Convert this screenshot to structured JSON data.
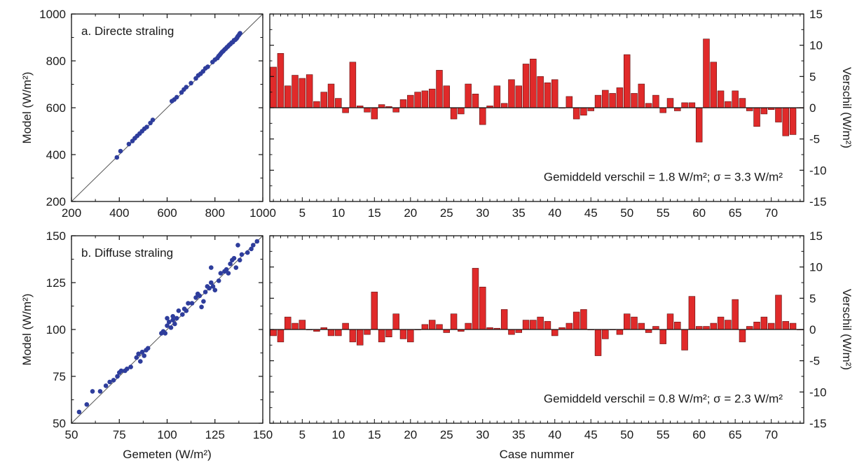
{
  "chart_data": [
    {
      "type": "scatter",
      "title": "a. Directe straling",
      "xlabel": "",
      "ylabel": "Model (W/m²)",
      "xlim": [
        200,
        1000
      ],
      "ylim": [
        200,
        1000
      ],
      "xticks": [
        "200",
        "400",
        "600",
        "800",
        "1000"
      ],
      "yticks": [
        "200",
        "400",
        "600",
        "800",
        "1000"
      ],
      "reference_line": "y = x",
      "grid": false,
      "color": "#2e3d9c",
      "points": [
        [
          390,
          388
        ],
        [
          405,
          415
        ],
        [
          440,
          445
        ],
        [
          455,
          458
        ],
        [
          465,
          470
        ],
        [
          475,
          480
        ],
        [
          485,
          490
        ],
        [
          495,
          500
        ],
        [
          505,
          510
        ],
        [
          515,
          518
        ],
        [
          530,
          535
        ],
        [
          540,
          548
        ],
        [
          620,
          628
        ],
        [
          630,
          635
        ],
        [
          640,
          645
        ],
        [
          660,
          665
        ],
        [
          670,
          678
        ],
        [
          680,
          688
        ],
        [
          700,
          705
        ],
        [
          720,
          725
        ],
        [
          730,
          738
        ],
        [
          740,
          745
        ],
        [
          750,
          755
        ],
        [
          760,
          768
        ],
        [
          770,
          775
        ],
        [
          790,
          795
        ],
        [
          800,
          805
        ],
        [
          810,
          812
        ],
        [
          815,
          820
        ],
        [
          820,
          825
        ],
        [
          825,
          832
        ],
        [
          830,
          838
        ],
        [
          835,
          842
        ],
        [
          840,
          848
        ],
        [
          845,
          852
        ],
        [
          850,
          858
        ],
        [
          855,
          862
        ],
        [
          860,
          868
        ],
        [
          865,
          872
        ],
        [
          870,
          878
        ],
        [
          875,
          880
        ],
        [
          880,
          888
        ],
        [
          885,
          890
        ],
        [
          890,
          895
        ],
        [
          893,
          900
        ],
        [
          896,
          905
        ],
        [
          900,
          910
        ],
        [
          903,
          915
        ],
        [
          905,
          918
        ]
      ]
    },
    {
      "type": "bar",
      "title": "",
      "xlabel": "",
      "ylabel": "Verschil (W/m²)",
      "ylim": [
        -15,
        15
      ],
      "xticks": [
        "5",
        "10",
        "15",
        "20",
        "25",
        "30",
        "35",
        "40",
        "45",
        "50",
        "55",
        "60",
        "65",
        "70"
      ],
      "yticks": [
        "15",
        "10",
        "5",
        "0",
        "-5",
        "-10",
        "-15"
      ],
      "annotation": "Gemiddeld verschil = 1.8 W/m²; σ = 3.3 W/m²",
      "color": "#e02a2a",
      "categories": [
        1,
        2,
        3,
        4,
        5,
        6,
        7,
        8,
        9,
        10,
        11,
        12,
        13,
        14,
        15,
        16,
        17,
        18,
        19,
        20,
        21,
        22,
        23,
        24,
        25,
        26,
        27,
        28,
        29,
        30,
        31,
        32,
        33,
        34,
        35,
        36,
        37,
        38,
        39,
        40,
        41,
        42,
        43,
        44,
        45,
        46,
        47,
        48,
        49,
        50,
        51,
        52,
        53,
        54,
        55,
        56,
        57,
        58,
        59,
        60,
        61,
        62,
        63,
        64,
        65,
        66,
        67,
        68,
        69,
        70,
        71,
        72,
        73,
        74
      ],
      "values": [
        6.5,
        8.7,
        3.5,
        5.2,
        4.7,
        5.3,
        1.0,
        2.5,
        3.8,
        1.5,
        -0.8,
        7.3,
        0.3,
        -0.7,
        -1.8,
        0.5,
        0.2,
        -0.7,
        1.3,
        2.0,
        2.5,
        2.7,
        3.0,
        6.0,
        3.5,
        -1.8,
        -1.0,
        3.8,
        2.2,
        -2.7,
        0.3,
        3.5,
        0.7,
        4.5,
        3.5,
        7.0,
        7.8,
        5.0,
        4.0,
        4.5,
        0.0,
        1.8,
        -1.8,
        -1.2,
        -0.5,
        2.0,
        2.8,
        2.3,
        3.2,
        8.5,
        2.3,
        3.8,
        0.7,
        2.0,
        -0.8,
        1.5,
        -0.5,
        0.8,
        0.8,
        -5.5,
        11.0,
        7.3,
        2.7,
        1.0,
        2.7,
        1.5,
        -0.5,
        -3.0,
        -1.0,
        -0.3,
        -2.3,
        -4.5,
        -4.3,
        0.0
      ]
    },
    {
      "type": "scatter",
      "title": "b. Diffuse straling",
      "xlabel": "Gemeten (W/m²)",
      "ylabel": "Model (W/m²)",
      "xlim": [
        50,
        150
      ],
      "ylim": [
        50,
        150
      ],
      "xticks": [
        "50",
        "75",
        "100",
        "125",
        "150"
      ],
      "yticks": [
        "50",
        "75",
        "100",
        "125",
        "150"
      ],
      "reference_line": "y = x",
      "grid": false,
      "color": "#2e3d9c",
      "points": [
        [
          54,
          56
        ],
        [
          58,
          60
        ],
        [
          61,
          67
        ],
        [
          65,
          67
        ],
        [
          68,
          70
        ],
        [
          70,
          72
        ],
        [
          72,
          73
        ],
        [
          74,
          75
        ],
        [
          75,
          77
        ],
        [
          76,
          78
        ],
        [
          78,
          78
        ],
        [
          79,
          79
        ],
        [
          81,
          80
        ],
        [
          84,
          85
        ],
        [
          85,
          87
        ],
        [
          86,
          83
        ],
        [
          87,
          88
        ],
        [
          88,
          86
        ],
        [
          89,
          89
        ],
        [
          90,
          90
        ],
        [
          97,
          98
        ],
        [
          98,
          99
        ],
        [
          99,
          98
        ],
        [
          100,
          102
        ],
        [
          100,
          106
        ],
        [
          101,
          104
        ],
        [
          102,
          101
        ],
        [
          103,
          105
        ],
        [
          103,
          107
        ],
        [
          104,
          103
        ],
        [
          105,
          106
        ],
        [
          106,
          110
        ],
        [
          108,
          108
        ],
        [
          109,
          111
        ],
        [
          110,
          110
        ],
        [
          111,
          114
        ],
        [
          113,
          114
        ],
        [
          115,
          117
        ],
        [
          116,
          119
        ],
        [
          117,
          118
        ],
        [
          118,
          112
        ],
        [
          119,
          115
        ],
        [
          120,
          120
        ],
        [
          121,
          123
        ],
        [
          122,
          122
        ],
        [
          123,
          125
        ],
        [
          123,
          133
        ],
        [
          124,
          123
        ],
        [
          125,
          121
        ],
        [
          127,
          126
        ],
        [
          128,
          130
        ],
        [
          130,
          131
        ],
        [
          131,
          132
        ],
        [
          132,
          130
        ],
        [
          133,
          135
        ],
        [
          134,
          137
        ],
        [
          135,
          138
        ],
        [
          136,
          133
        ],
        [
          137,
          145
        ],
        [
          138,
          137
        ],
        [
          139,
          140
        ],
        [
          142,
          141
        ],
        [
          144,
          143
        ],
        [
          145,
          145
        ],
        [
          147,
          147
        ]
      ]
    },
    {
      "type": "bar",
      "title": "",
      "xlabel": "Case nummer",
      "ylabel": "Verschil (W/m²)",
      "ylim": [
        -15,
        15
      ],
      "xticks": [
        "5",
        "10",
        "15",
        "20",
        "25",
        "30",
        "35",
        "40",
        "45",
        "50",
        "55",
        "60",
        "65",
        "70"
      ],
      "yticks": [
        "15",
        "10",
        "5",
        "0",
        "-5",
        "-10",
        "-15"
      ],
      "annotation": "Gemiddeld verschil = 0.8 W/m²; σ = 2.3 W/m²",
      "color": "#e02a2a",
      "categories": [
        1,
        2,
        3,
        4,
        5,
        6,
        7,
        8,
        9,
        10,
        11,
        12,
        13,
        14,
        15,
        16,
        17,
        18,
        19,
        20,
        21,
        22,
        23,
        24,
        25,
        26,
        27,
        28,
        29,
        30,
        31,
        32,
        33,
        34,
        35,
        36,
        37,
        38,
        39,
        40,
        41,
        42,
        43,
        44,
        45,
        46,
        47,
        48,
        49,
        50,
        51,
        52,
        53,
        54,
        55,
        56,
        57,
        58,
        59,
        60,
        61,
        62,
        63,
        64,
        65,
        66,
        67,
        68,
        69,
        70,
        71,
        72,
        73,
        74
      ],
      "values": [
        -1.0,
        -2.0,
        2.0,
        1.0,
        1.5,
        0.0,
        -0.3,
        0.3,
        -1.0,
        -1.0,
        1.0,
        -2.0,
        -2.5,
        -0.8,
        6.0,
        -2.0,
        -1.2,
        2.5,
        -1.5,
        -2.0,
        0.0,
        0.8,
        1.5,
        0.8,
        -0.5,
        2.5,
        -0.3,
        1.0,
        9.8,
        6.8,
        0.3,
        0.2,
        3.2,
        -0.8,
        -0.5,
        1.5,
        1.5,
        2.0,
        1.3,
        -1.0,
        0.3,
        1.0,
        2.8,
        3.2,
        0.0,
        -4.2,
        -1.5,
        0.0,
        -0.8,
        2.5,
        2.0,
        1.0,
        -0.5,
        0.5,
        -2.3,
        2.5,
        1.2,
        -3.3,
        5.3,
        0.5,
        0.5,
        1.0,
        2.0,
        1.5,
        4.8,
        -2.0,
        0.5,
        1.2,
        2.0,
        1.0,
        5.5,
        1.3,
        1.0,
        0.0
      ]
    }
  ]
}
